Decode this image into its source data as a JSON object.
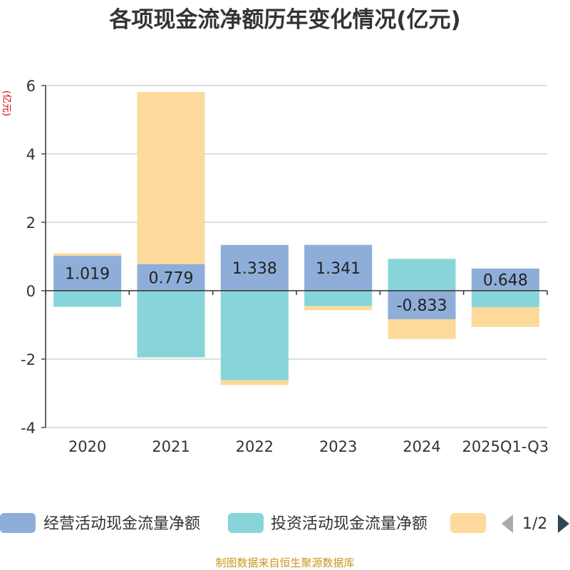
{
  "chart_data": {
    "type": "bar",
    "stacked": true,
    "title": "各项现金流净额历年变化情况(亿元)",
    "ylabel": "(亿元)",
    "ylim": [
      -4,
      6
    ],
    "yticks": [
      -4,
      -2,
      0,
      2,
      4,
      6
    ],
    "grid": true,
    "categories": [
      "2020",
      "2021",
      "2022",
      "2023",
      "2024",
      "2025Q1-Q3"
    ],
    "series": [
      {
        "name": "经营活动现金流量净额",
        "color": "#8eaed9",
        "values": [
          1.019,
          0.779,
          1.338,
          1.341,
          -0.833,
          0.648
        ],
        "labels": [
          "1.019",
          "0.779",
          "1.338",
          "1.341",
          "-0.833",
          "0.648"
        ]
      },
      {
        "name": "投资活动现金流量净额",
        "color": "#87d5d9",
        "values": [
          -0.47,
          -1.95,
          -2.62,
          -0.45,
          0.93,
          -0.48
        ]
      },
      {
        "name": "",
        "color": "#fdd99b",
        "values": [
          0.07,
          5.03,
          -0.14,
          -0.12,
          -0.58,
          -0.58
        ]
      }
    ]
  },
  "legend": {
    "items": [
      {
        "label": "经营活动现金流量净额",
        "color": "#8eaed9"
      },
      {
        "label": "投资活动现金流量净额",
        "color": "#87d5d9"
      },
      {
        "label": "",
        "color": "#fdd99b"
      }
    ],
    "page": "1/2",
    "prev_color": "#aaaaaa",
    "next_color": "#2f4554"
  },
  "source": "制图数据来自恒生聚源数据库"
}
